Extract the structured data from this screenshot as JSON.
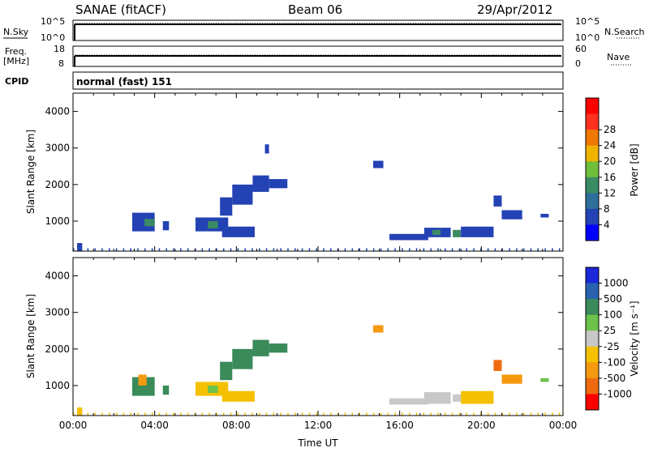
{
  "header": {
    "station": "SANAE (fitACF)",
    "beam": "Beam 06",
    "date": "29/Apr/2012"
  },
  "strip_labels": {
    "nsky": "N.Sky",
    "nsearch": "N.Search",
    "freq": "Freq.",
    "freq_unit": "[MHz]",
    "nave": "Nave",
    "cpid": "CPID",
    "cpid_value": "normal (fast) 151"
  },
  "chart_data": [
    {
      "type": "line",
      "name": "noise-strip",
      "y_left_ticks": [
        "10^5",
        "10^0"
      ],
      "y_right_ticks": [
        "10^5",
        "10^0"
      ],
      "series": [
        {
          "name": "N.Sky",
          "style": "solid",
          "level": 0.85
        },
        {
          "name": "N.Search",
          "style": "dotted",
          "level": 0.9
        }
      ]
    },
    {
      "type": "line",
      "name": "freq-nave-strip",
      "y_left_ticks": [
        18,
        8
      ],
      "y_right_ticks": [
        60,
        0
      ],
      "series": [
        {
          "name": "Freq. [MHz]",
          "style": "solid",
          "value": 12
        },
        {
          "name": "Nave",
          "style": "dotted"
        }
      ]
    },
    {
      "type": "heatmap",
      "name": "power",
      "xlabel": "",
      "ylabel": "Slant Range [km]",
      "ylim": [
        180,
        4500
      ],
      "y_ticks": [
        1000,
        2000,
        3000,
        4000
      ],
      "colorbar_label": "Power [dB]",
      "colorbar_ticks": [
        4,
        8,
        12,
        16,
        20,
        24,
        28
      ],
      "colorbar_colors": [
        "#0000ff",
        "#2342b4",
        "#2d6e9a",
        "#3a8a63",
        "#6fbf3b",
        "#f0b400",
        "#f07800",
        "#ff3020",
        "#ff0000"
      ],
      "patches": [
        {
          "t0": 0.2,
          "t1": 0.45,
          "r0": 180,
          "r1": 400,
          "color": "#2342b4"
        },
        {
          "t0": 2.9,
          "t1": 4.0,
          "r0": 720,
          "r1": 1230,
          "color": "#2342b4"
        },
        {
          "t0": 3.5,
          "t1": 4.0,
          "r0": 860,
          "r1": 1060,
          "color": "#3a8a63"
        },
        {
          "t0": 4.4,
          "t1": 4.7,
          "r0": 750,
          "r1": 1000,
          "color": "#2342b4"
        },
        {
          "t0": 6.0,
          "t1": 7.6,
          "r0": 720,
          "r1": 1100,
          "color": "#2342b4"
        },
        {
          "t0": 6.6,
          "t1": 7.1,
          "r0": 800,
          "r1": 1000,
          "color": "#3a8a63"
        },
        {
          "t0": 7.3,
          "t1": 8.9,
          "r0": 560,
          "r1": 850,
          "color": "#2342b4"
        },
        {
          "t0": 7.2,
          "t1": 7.8,
          "r0": 1150,
          "r1": 1650,
          "color": "#2342b4"
        },
        {
          "t0": 7.8,
          "t1": 8.8,
          "r0": 1450,
          "r1": 2000,
          "color": "#2342b4"
        },
        {
          "t0": 8.8,
          "t1": 9.6,
          "r0": 1800,
          "r1": 2250,
          "color": "#2342b4"
        },
        {
          "t0": 9.6,
          "t1": 10.5,
          "r0": 1900,
          "r1": 2150,
          "color": "#2342b4"
        },
        {
          "t0": 9.4,
          "t1": 9.6,
          "r0": 2850,
          "r1": 3100,
          "color": "#2342b4"
        },
        {
          "t0": 14.7,
          "t1": 15.2,
          "r0": 2450,
          "r1": 2650,
          "color": "#2342b4"
        },
        {
          "t0": 15.5,
          "t1": 17.4,
          "r0": 480,
          "r1": 650,
          "color": "#2342b4"
        },
        {
          "t0": 17.2,
          "t1": 18.5,
          "r0": 560,
          "r1": 820,
          "color": "#2342b4"
        },
        {
          "t0": 17.6,
          "t1": 18.0,
          "r0": 620,
          "r1": 760,
          "color": "#3a8a63"
        },
        {
          "t0": 18.6,
          "t1": 19.0,
          "r0": 560,
          "r1": 760,
          "color": "#3a8a63"
        },
        {
          "t0": 19.0,
          "t1": 20.6,
          "r0": 560,
          "r1": 850,
          "color": "#2342b4"
        },
        {
          "t0": 20.6,
          "t1": 21.0,
          "r0": 1400,
          "r1": 1700,
          "color": "#2342b4"
        },
        {
          "t0": 21.0,
          "t1": 22.0,
          "r0": 1050,
          "r1": 1300,
          "color": "#2342b4"
        },
        {
          "t0": 22.9,
          "t1": 23.3,
          "r0": 1100,
          "r1": 1200,
          "color": "#2342b4"
        },
        {
          "t0": 0.0,
          "t1": 24.0,
          "r0": 180,
          "r1": 260,
          "color": "#2342b4",
          "sparse": true
        }
      ]
    },
    {
      "type": "heatmap",
      "name": "velocity",
      "xlabel": "Time UT",
      "ylabel": "Slant Range [km]",
      "ylim": [
        180,
        4500
      ],
      "y_ticks": [
        1000,
        2000,
        3000,
        4000
      ],
      "x_ticks": [
        "00:00",
        "04:00",
        "08:00",
        "12:00",
        "16:00",
        "20:00",
        "00:00"
      ],
      "colorbar_label": "Velocity [m s⁻¹]",
      "colorbar_ticks": [
        "1000",
        "500",
        "100",
        "25",
        "-25",
        "-100",
        "-500",
        "-1000"
      ],
      "colorbar_colors": [
        "#1a28d8",
        "#2a62b0",
        "#3a8a5a",
        "#6cc24a",
        "#c8c8c8",
        "#f5c000",
        "#f59a10",
        "#f06a10",
        "#ff0000"
      ],
      "patches": [
        {
          "t0": 0.2,
          "t1": 0.45,
          "r0": 180,
          "r1": 400,
          "color": "#f5c000"
        },
        {
          "t0": 2.9,
          "t1": 4.0,
          "r0": 720,
          "r1": 1230,
          "color": "#3a8a5a"
        },
        {
          "t0": 3.2,
          "t1": 3.6,
          "r0": 1000,
          "r1": 1300,
          "color": "#f59a10"
        },
        {
          "t0": 4.4,
          "t1": 4.7,
          "r0": 750,
          "r1": 1000,
          "color": "#3a8a5a"
        },
        {
          "t0": 6.0,
          "t1": 7.6,
          "r0": 720,
          "r1": 1100,
          "color": "#f5c000"
        },
        {
          "t0": 6.6,
          "t1": 7.1,
          "r0": 800,
          "r1": 1000,
          "color": "#6cc24a"
        },
        {
          "t0": 7.3,
          "t1": 8.9,
          "r0": 560,
          "r1": 850,
          "color": "#f5c000"
        },
        {
          "t0": 7.2,
          "t1": 7.8,
          "r0": 1150,
          "r1": 1650,
          "color": "#3a8a5a"
        },
        {
          "t0": 7.8,
          "t1": 8.8,
          "r0": 1450,
          "r1": 2000,
          "color": "#3a8a5a"
        },
        {
          "t0": 8.8,
          "t1": 9.6,
          "r0": 1800,
          "r1": 2250,
          "color": "#3a8a5a"
        },
        {
          "t0": 9.6,
          "t1": 10.5,
          "r0": 1900,
          "r1": 2150,
          "color": "#3a8a5a"
        },
        {
          "t0": 14.7,
          "t1": 15.2,
          "r0": 2450,
          "r1": 2650,
          "color": "#f59a10"
        },
        {
          "t0": 15.5,
          "t1": 17.4,
          "r0": 480,
          "r1": 650,
          "color": "#c8c8c8"
        },
        {
          "t0": 17.2,
          "t1": 18.5,
          "r0": 500,
          "r1": 820,
          "color": "#c8c8c8"
        },
        {
          "t0": 18.6,
          "t1": 19.0,
          "r0": 560,
          "r1": 760,
          "color": "#c8c8c8"
        },
        {
          "t0": 19.0,
          "t1": 20.6,
          "r0": 500,
          "r1": 850,
          "color": "#f5c000"
        },
        {
          "t0": 20.6,
          "t1": 21.0,
          "r0": 1400,
          "r1": 1700,
          "color": "#f06a10"
        },
        {
          "t0": 21.0,
          "t1": 22.0,
          "r0": 1050,
          "r1": 1300,
          "color": "#f59a10"
        },
        {
          "t0": 22.9,
          "t1": 23.3,
          "r0": 1100,
          "r1": 1200,
          "color": "#6cc24a"
        },
        {
          "t0": 0.0,
          "t1": 24.0,
          "r0": 180,
          "r1": 260,
          "color": "#f5c000",
          "sparse": true
        }
      ]
    }
  ]
}
